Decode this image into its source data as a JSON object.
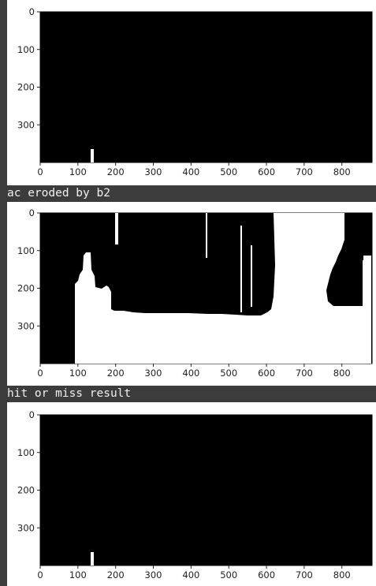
{
  "output_labels": [
    "ac eroded by b2",
    "hit or miss result"
  ],
  "colors": {
    "panel_bg": "#3c3c3c",
    "label_text": "#f0f0f0",
    "image_fg": "#ffffff",
    "image_bg": "#000000"
  },
  "chart_data": [
    {
      "type": "image",
      "title": "",
      "x_ticks": [
        "0",
        "100",
        "200",
        "300",
        "400",
        "500",
        "600",
        "700",
        "800"
      ],
      "y_ticks": [
        "0",
        "100",
        "200",
        "300"
      ],
      "xlim": [
        0,
        880
      ],
      "ylim": [
        400,
        0
      ]
    },
    {
      "type": "image",
      "title": "",
      "x_ticks": [
        "0",
        "100",
        "200",
        "300",
        "400",
        "500",
        "600",
        "700",
        "800"
      ],
      "y_ticks": [
        "0",
        "100",
        "200",
        "300"
      ],
      "xlim": [
        0,
        880
      ],
      "ylim": [
        400,
        0
      ]
    },
    {
      "type": "image",
      "title": "",
      "x_ticks": [
        "0",
        "100",
        "200",
        "300",
        "400",
        "500",
        "600",
        "700",
        "800"
      ],
      "y_ticks": [
        "0",
        "100",
        "200",
        "300"
      ],
      "xlim": [
        0,
        880
      ],
      "ylim": [
        400,
        0
      ]
    }
  ]
}
